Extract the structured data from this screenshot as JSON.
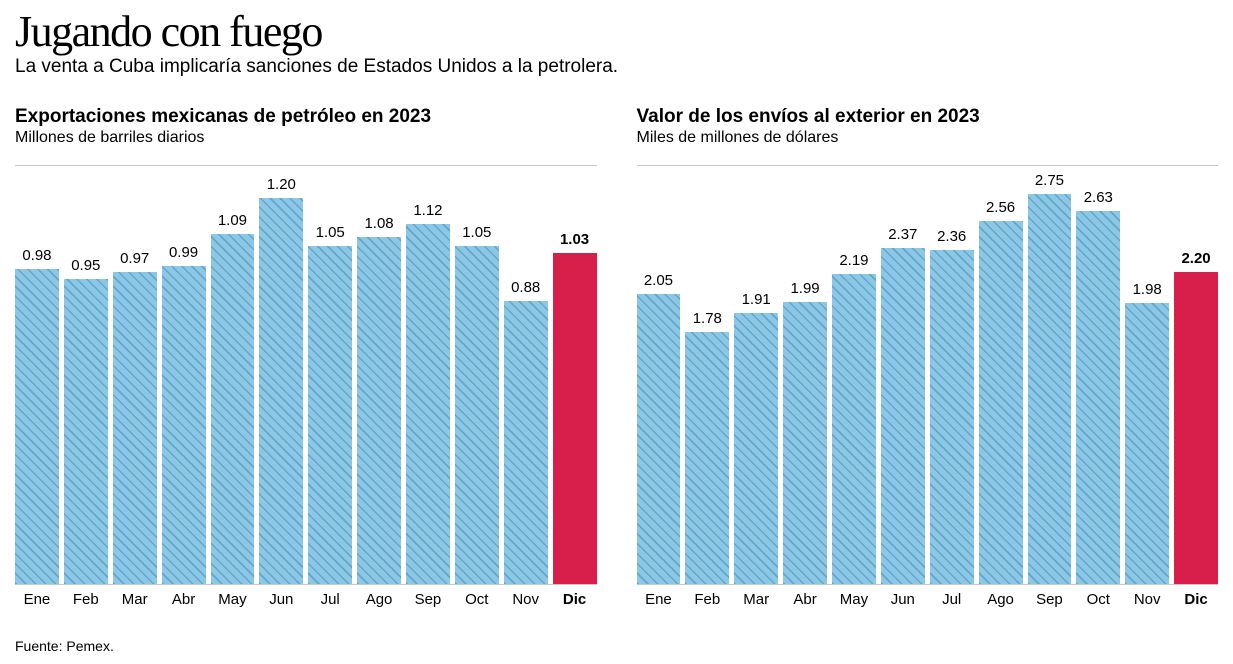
{
  "header": {
    "title": "Jugando con fuego",
    "subtitle": "La venta a Cuba implicaría sanciones de Estados Unidos a la petrolera."
  },
  "chart_left": {
    "type": "bar",
    "title": "Exportaciones mexicanas de petróleo en 2023",
    "subtitle": "Millones de barriles diarios",
    "ymax": 1.3,
    "bar_color": "#8cc8e6",
    "hatch_color": "#3c8cb4",
    "highlight_color": "#d81e4a",
    "border_color": "#c8c8c8",
    "value_fontsize": 15,
    "label_fontsize": 15,
    "categories": [
      "Ene",
      "Feb",
      "Mar",
      "Abr",
      "May",
      "Jun",
      "Jul",
      "Ago",
      "Sep",
      "Oct",
      "Nov",
      "Dic"
    ],
    "values": [
      0.98,
      0.95,
      0.97,
      0.99,
      1.09,
      1.2,
      1.05,
      1.08,
      1.12,
      1.05,
      0.88,
      1.03
    ],
    "highlight_index": 11
  },
  "chart_right": {
    "type": "bar",
    "title": "Valor de los envíos al exterior en 2023",
    "subtitle": "Miles de millones de dólares",
    "ymax": 2.95,
    "bar_color": "#8cc8e6",
    "hatch_color": "#3c8cb4",
    "highlight_color": "#d81e4a",
    "border_color": "#c8c8c8",
    "value_fontsize": 15,
    "label_fontsize": 15,
    "categories": [
      "Ene",
      "Feb",
      "Mar",
      "Abr",
      "May",
      "Jun",
      "Jul",
      "Ago",
      "Sep",
      "Oct",
      "Nov",
      "Dic"
    ],
    "values": [
      2.05,
      1.78,
      1.91,
      1.99,
      2.19,
      2.37,
      2.36,
      2.56,
      2.75,
      2.63,
      1.98,
      2.2
    ],
    "highlight_index": 11
  },
  "footer": {
    "source": "Fuente: Pemex."
  },
  "style": {
    "background_color": "#ffffff",
    "title_fontsize": 44,
    "subtitle_fontsize": 19,
    "chart_title_fontsize": 19,
    "chart_sub_fontsize": 16,
    "source_fontsize": 14,
    "font_family_serif": "Georgia, serif",
    "font_family_sans": "Arial, Helvetica, sans-serif"
  }
}
